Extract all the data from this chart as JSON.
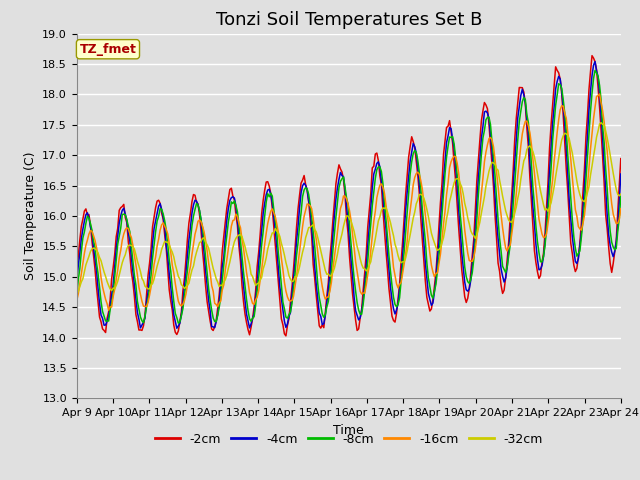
{
  "title": "Tonzi Soil Temperatures Set B",
  "xlabel": "Time",
  "ylabel": "Soil Temperature (C)",
  "ylim": [
    13.0,
    19.0
  ],
  "yticks": [
    13.0,
    13.5,
    14.0,
    14.5,
    15.0,
    15.5,
    16.0,
    16.5,
    17.0,
    17.5,
    18.0,
    18.5,
    19.0
  ],
  "x_labels": [
    "Apr 9",
    "Apr 10",
    "Apr 11",
    "Apr 12",
    "Apr 13",
    "Apr 14",
    "Apr 15",
    "Apr 16",
    "Apr 17",
    "Apr 18",
    "Apr 19",
    "Apr 20",
    "Apr 21",
    "Apr 22",
    "Apr 23",
    "Apr 24"
  ],
  "legend_labels": [
    "-2cm",
    "-4cm",
    "-8cm",
    "-16cm",
    "-32cm"
  ],
  "line_colors": [
    "#dd0000",
    "#0000cc",
    "#00bb00",
    "#ff8800",
    "#cccc00"
  ],
  "annotation_text": "TZ_fmet",
  "annotation_color": "#aa0000",
  "annotation_bg": "#ffffcc",
  "plot_bg": "#e0e0e0",
  "title_fontsize": 13,
  "label_fontsize": 9,
  "tick_fontsize": 8,
  "legend_fontsize": 9
}
